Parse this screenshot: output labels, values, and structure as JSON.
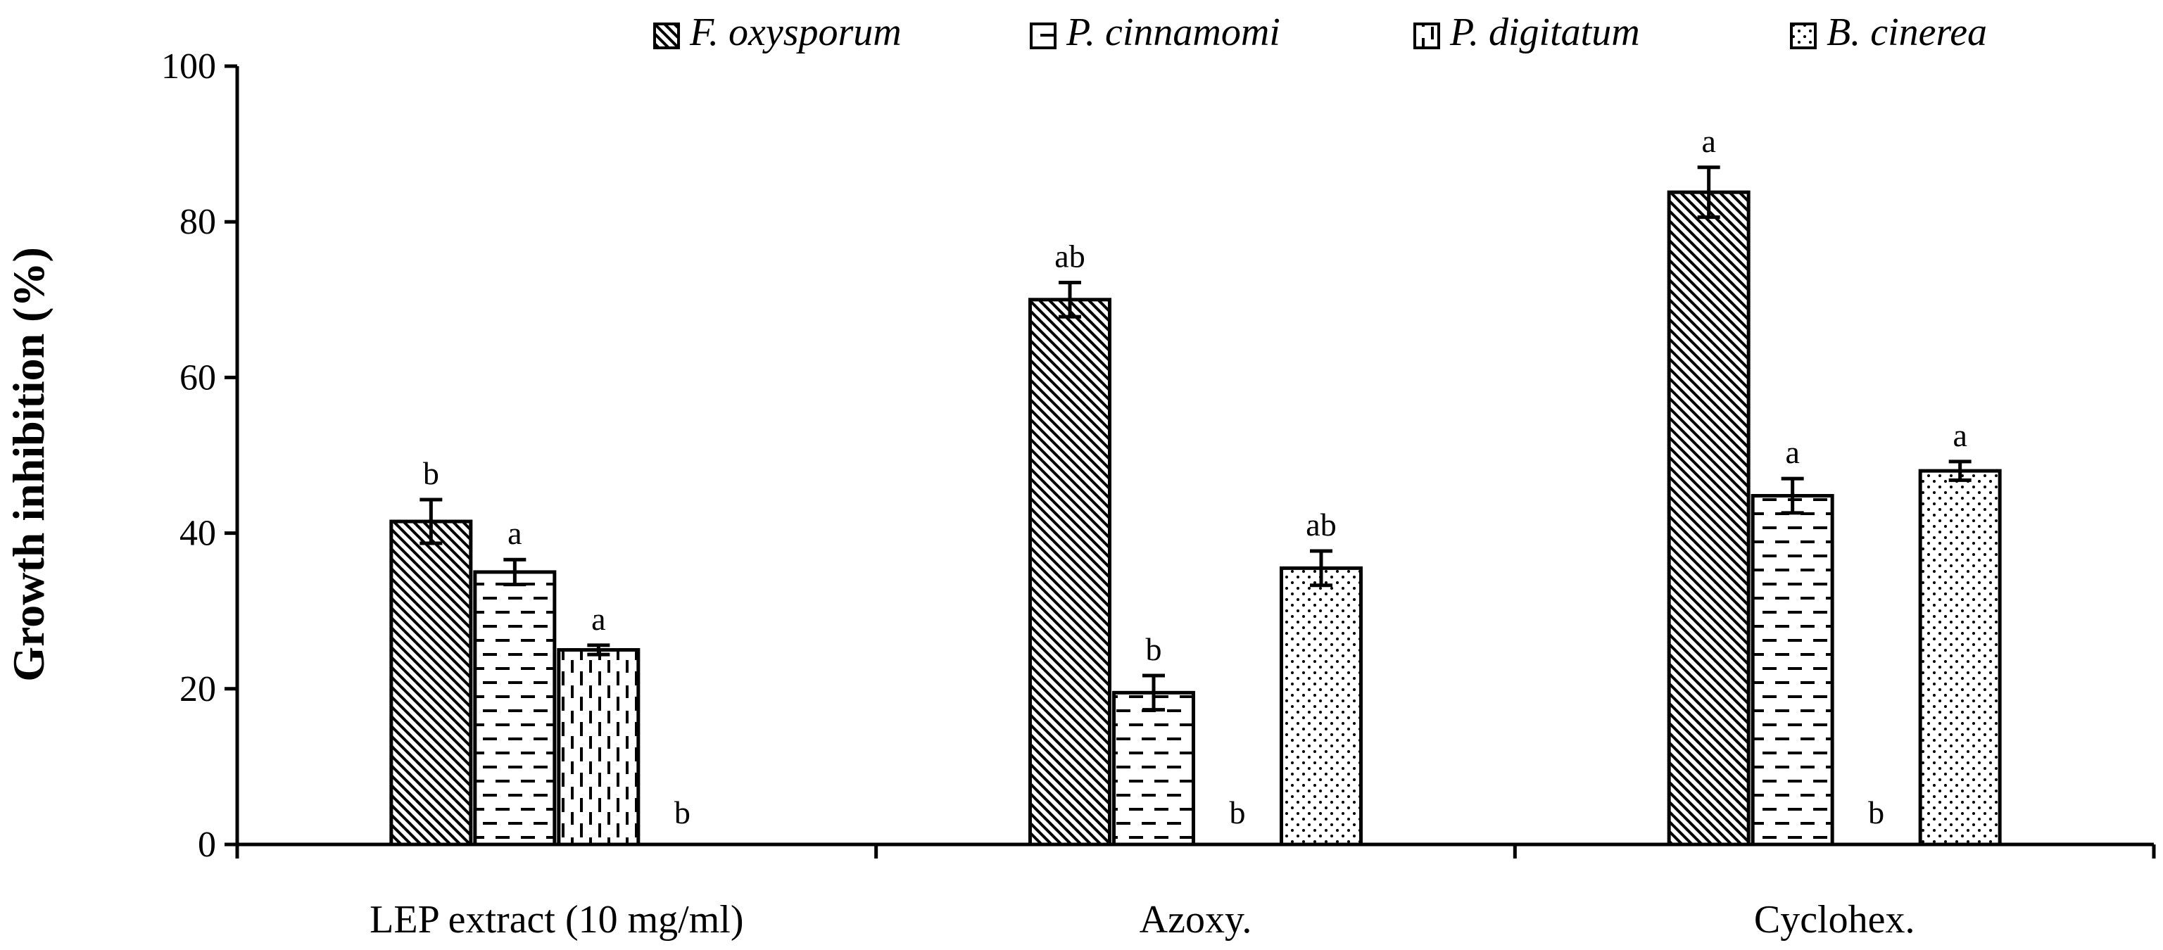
{
  "chart_data": {
    "type": "bar",
    "title": "",
    "xlabel": "",
    "ylabel": "Growth inhibition  (%)",
    "ylim": [
      0,
      100
    ],
    "yticks": [
      0,
      20,
      40,
      60,
      80,
      100
    ],
    "categories": [
      "LEP extract (10 mg/ml)",
      "Azoxy.",
      "Cyclohex."
    ],
    "legend_position": "top",
    "series": [
      {
        "name": "F. oxysporum",
        "pattern": "diagonal",
        "values": [
          41.5,
          70,
          83.8
        ],
        "errors": [
          2.8,
          2.2,
          3.2
        ],
        "labels": [
          "b",
          "ab",
          "a"
        ]
      },
      {
        "name": "P. cinnamomi",
        "pattern": "horizontal-dashes",
        "values": [
          35,
          19.5,
          44.8
        ],
        "errors": [
          1.6,
          2.2,
          2.2
        ],
        "labels": [
          "a",
          "b",
          "a"
        ]
      },
      {
        "name": "P. digitatum",
        "pattern": "vertical-dashes",
        "values": [
          25,
          0,
          0
        ],
        "errors": [
          0.6,
          0,
          0
        ],
        "labels": [
          "a",
          "b",
          "b"
        ]
      },
      {
        "name": "B. cinerea",
        "pattern": "dots",
        "values": [
          0,
          35.5,
          48
        ],
        "errors": [
          0,
          2.2,
          1.2
        ],
        "labels": [
          "b",
          "ab",
          "a"
        ]
      }
    ]
  }
}
